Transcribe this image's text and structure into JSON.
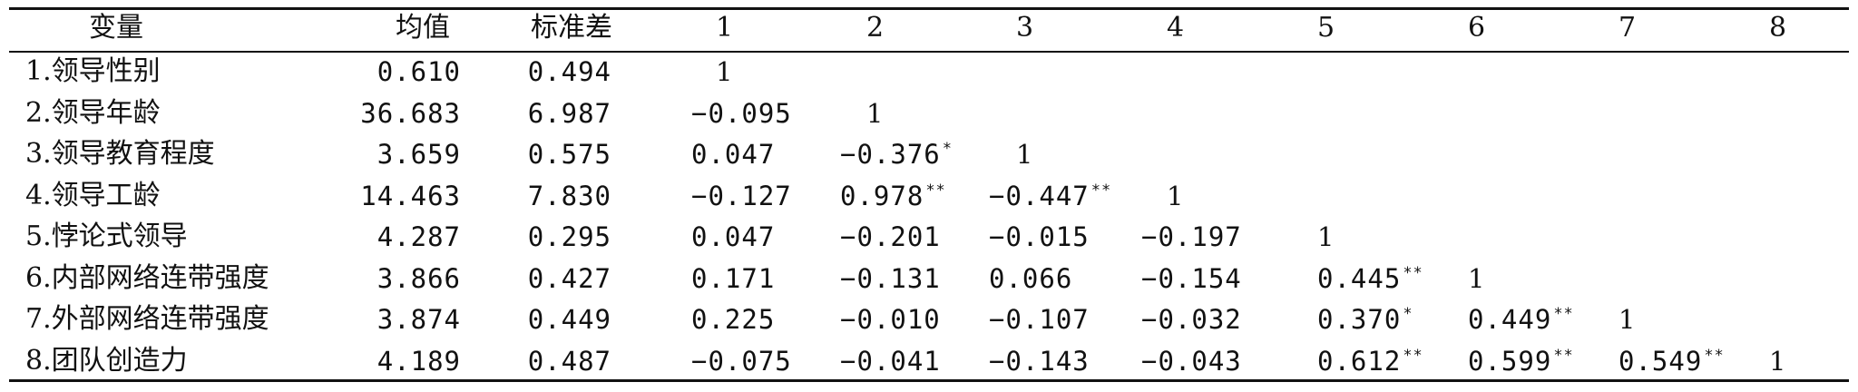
{
  "table": {
    "headers": [
      "变量",
      "均值",
      "标准差",
      "1",
      "2",
      "3",
      "4",
      "5",
      "6",
      "7",
      "8"
    ],
    "rows": [
      {
        "label": "1.领导性别",
        "mean": "0.610",
        "sd": "0.494",
        "corr": [
          {
            "v": "1",
            "sig": ""
          }
        ]
      },
      {
        "label": "2.领导年龄",
        "mean": "36.683",
        "sd": "6.987",
        "corr": [
          {
            "v": "−0.095",
            "sig": ""
          },
          {
            "v": "1",
            "sig": ""
          }
        ]
      },
      {
        "label": "3.领导教育程度",
        "mean": "3.659",
        "sd": "0.575",
        "corr": [
          {
            "v": "0.047",
            "sig": ""
          },
          {
            "v": "−0.376",
            "sig": "*"
          },
          {
            "v": "1",
            "sig": ""
          }
        ]
      },
      {
        "label": "4.领导工龄",
        "mean": "14.463",
        "sd": "7.830",
        "corr": [
          {
            "v": "−0.127",
            "sig": ""
          },
          {
            "v": "0.978",
            "sig": "**"
          },
          {
            "v": "−0.447",
            "sig": "**"
          },
          {
            "v": "1",
            "sig": ""
          }
        ]
      },
      {
        "label": "5.悖论式领导",
        "mean": "4.287",
        "sd": "0.295",
        "corr": [
          {
            "v": "0.047",
            "sig": ""
          },
          {
            "v": "−0.201",
            "sig": ""
          },
          {
            "v": "−0.015",
            "sig": ""
          },
          {
            "v": "−0.197",
            "sig": ""
          },
          {
            "v": "1",
            "sig": ""
          }
        ]
      },
      {
        "label": "6.内部网络连带强度",
        "mean": "3.866",
        "sd": "0.427",
        "corr": [
          {
            "v": "0.171",
            "sig": ""
          },
          {
            "v": "−0.131",
            "sig": ""
          },
          {
            "v": "0.066",
            "sig": ""
          },
          {
            "v": "−0.154",
            "sig": ""
          },
          {
            "v": "0.445",
            "sig": "**"
          },
          {
            "v": "1",
            "sig": ""
          }
        ]
      },
      {
        "label": "7.外部网络连带强度",
        "mean": "3.874",
        "sd": "0.449",
        "corr": [
          {
            "v": "0.225",
            "sig": ""
          },
          {
            "v": "−0.010",
            "sig": ""
          },
          {
            "v": "−0.107",
            "sig": ""
          },
          {
            "v": "−0.032",
            "sig": ""
          },
          {
            "v": "0.370",
            "sig": "*"
          },
          {
            "v": "0.449",
            "sig": "**"
          },
          {
            "v": "1",
            "sig": ""
          }
        ]
      },
      {
        "label": "8.团队创造力",
        "mean": "4.189",
        "sd": "0.487",
        "corr": [
          {
            "v": "−0.075",
            "sig": ""
          },
          {
            "v": "−0.041",
            "sig": ""
          },
          {
            "v": "−0.143",
            "sig": ""
          },
          {
            "v": "−0.043",
            "sig": ""
          },
          {
            "v": "0.612",
            "sig": "**"
          },
          {
            "v": "0.599",
            "sig": "**"
          },
          {
            "v": "0.549",
            "sig": "**"
          },
          {
            "v": "1",
            "sig": ""
          }
        ]
      }
    ]
  }
}
